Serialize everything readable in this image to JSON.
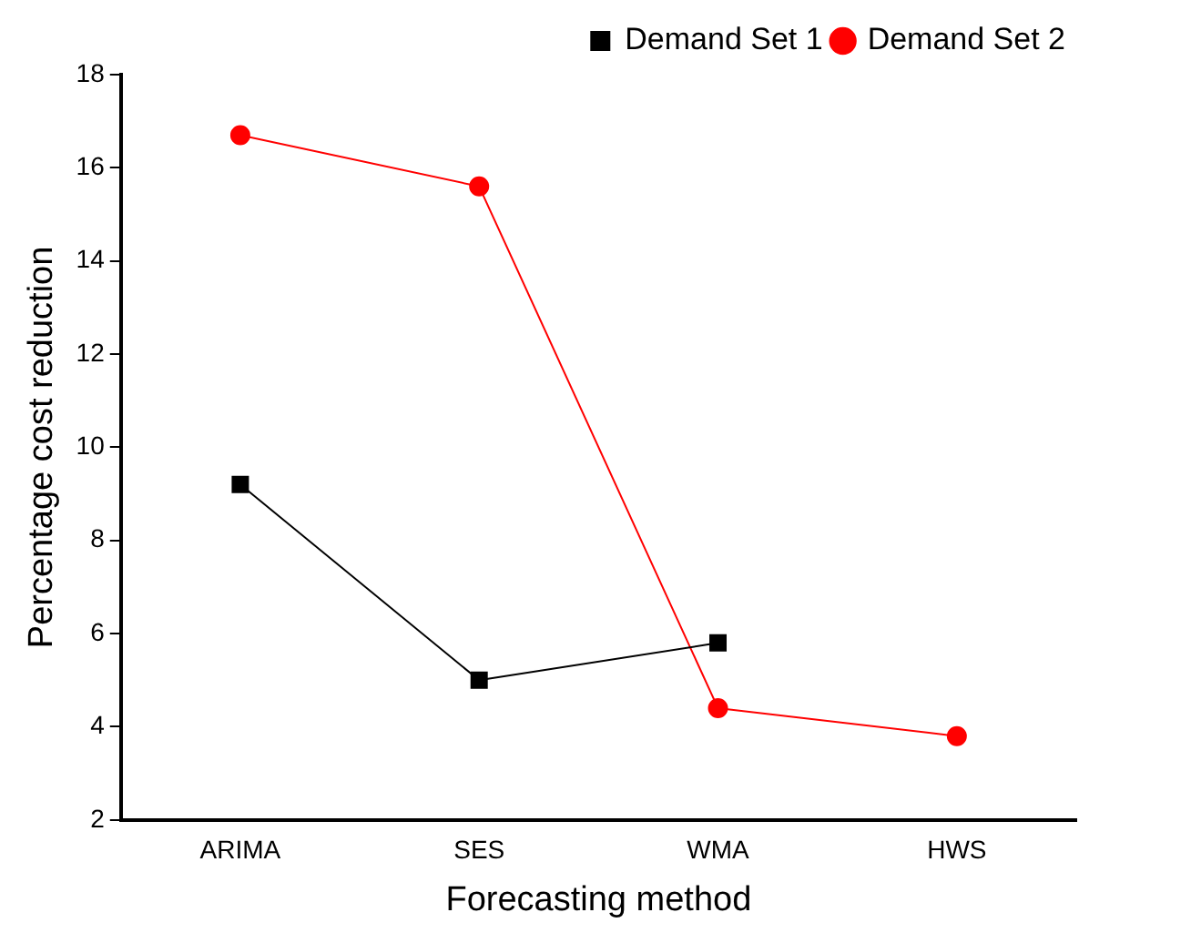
{
  "chart_data": {
    "type": "line",
    "xlabel": "Forecasting method",
    "ylabel": "Percentage cost reduction",
    "categories": [
      "ARIMA",
      "SES",
      "WMA",
      "HWS"
    ],
    "series": [
      {
        "name": "Demand Set 1",
        "color": "#000000",
        "marker": "square",
        "values": [
          9.2,
          5.0,
          5.8,
          null
        ]
      },
      {
        "name": "Demand Set 2",
        "color": "#ff0000",
        "marker": "circle",
        "values": [
          16.7,
          15.6,
          4.4,
          3.8
        ]
      }
    ],
    "ylim": [
      2,
      18
    ],
    "yticks": [
      2,
      4,
      6,
      8,
      10,
      12,
      14,
      16,
      18
    ],
    "grid": false,
    "legend": "top right"
  }
}
